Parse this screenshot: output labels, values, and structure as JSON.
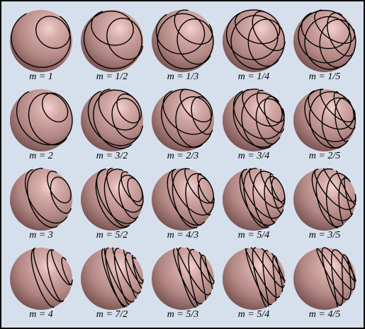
{
  "panels": [
    {
      "label": "m = 1",
      "m": 1
    },
    {
      "label": "m = 1/2",
      "m": 0.5
    },
    {
      "label": "m = 1/3",
      "m": 0.3333333
    },
    {
      "label": "m = 1/4",
      "m": 0.25
    },
    {
      "label": "m = 1/5",
      "m": 0.2
    },
    {
      "label": "m = 2",
      "m": 2
    },
    {
      "label": "m = 3/2",
      "m": 1.5
    },
    {
      "label": "m = 2/3",
      "m": 0.6666667
    },
    {
      "label": "m = 3/4",
      "m": 0.75
    },
    {
      "label": "m = 2/5",
      "m": 0.4
    },
    {
      "label": "m = 3",
      "m": 3
    },
    {
      "label": "m = 5/2",
      "m": 2.5
    },
    {
      "label": "m = 4/3",
      "m": 1.3333333
    },
    {
      "label": "m = 5/4",
      "m": 1.25
    },
    {
      "label": "m = 3/5",
      "m": 0.6
    },
    {
      "label": "m = 4",
      "m": 4
    },
    {
      "label": "m = 7/2",
      "m": 3.5
    },
    {
      "label": "m = 5/3",
      "m": 1.6666667
    },
    {
      "label": "m = 5/4",
      "m": 1.25
    },
    {
      "label": "m = 4/5",
      "m": 0.8
    }
  ],
  "colors": {
    "background": "#d6e0ec",
    "sphere_base": "#b08582",
    "sphere_highlight": "#f3d2d0",
    "sphere_shadow": "#6f4a49",
    "curve": "#000000",
    "border": "#000000"
  }
}
